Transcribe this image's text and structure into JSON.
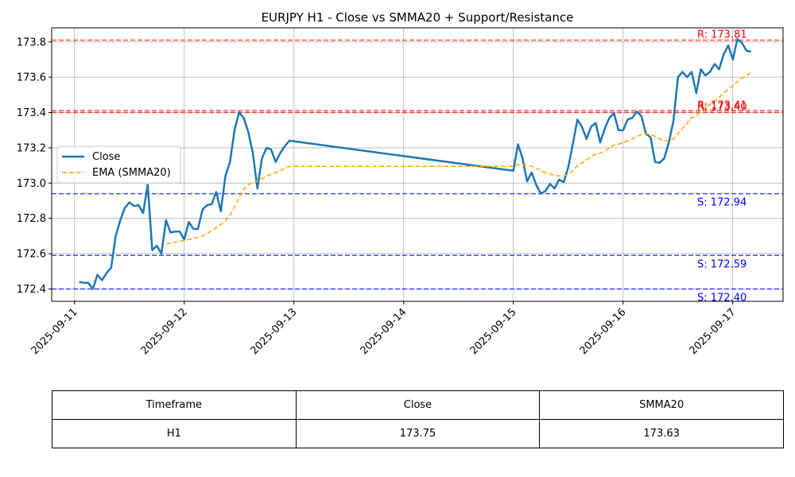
{
  "chart_data": {
    "type": "line",
    "title": "EURJPY H1 - Close vs SMMA20 + Support/Resistance",
    "xlabel": "",
    "ylabel": "",
    "x_ticks": [
      "2025-09-11",
      "2025-09-12",
      "2025-09-13",
      "2025-09-14",
      "2025-09-15",
      "2025-09-16",
      "2025-09-17"
    ],
    "y_ticks": [
      "172.4",
      "172.6",
      "172.8",
      "173.0",
      "173.2",
      "173.4",
      "173.6",
      "173.8"
    ],
    "xlim": [
      "2025-09-10T19:00",
      "2025-09-17T11:00"
    ],
    "ylim": [
      172.33,
      173.88
    ],
    "grid": true,
    "legend": {
      "position": "center-left",
      "entries": [
        "Close",
        "EMA (SMMA20)"
      ]
    },
    "series": [
      {
        "name": "Close",
        "color": "#1f77b4",
        "style": "solid",
        "points": [
          [
            "2025-09-11T01:00",
            172.44
          ],
          [
            "2025-09-11T02:00",
            172.435
          ],
          [
            "2025-09-11T03:00",
            172.435
          ],
          [
            "2025-09-11T04:00",
            172.4
          ],
          [
            "2025-09-11T05:00",
            172.48
          ],
          [
            "2025-09-11T06:00",
            172.45
          ],
          [
            "2025-09-11T07:00",
            172.49
          ],
          [
            "2025-09-11T08:00",
            172.52
          ],
          [
            "2025-09-11T09:00",
            172.7
          ],
          [
            "2025-09-11T10:00",
            172.79
          ],
          [
            "2025-09-11T11:00",
            172.86
          ],
          [
            "2025-09-11T12:00",
            172.89
          ],
          [
            "2025-09-11T13:00",
            172.87
          ],
          [
            "2025-09-11T14:00",
            172.875
          ],
          [
            "2025-09-11T15:00",
            172.83
          ],
          [
            "2025-09-11T16:00",
            172.99
          ],
          [
            "2025-09-11T17:00",
            172.62
          ],
          [
            "2025-09-11T18:00",
            172.645
          ],
          [
            "2025-09-11T19:00",
            172.6
          ],
          [
            "2025-09-11T20:00",
            172.79
          ],
          [
            "2025-09-11T21:00",
            172.72
          ],
          [
            "2025-09-11T22:00",
            172.725
          ],
          [
            "2025-09-11T23:00",
            172.725
          ],
          [
            "2025-09-12T00:00",
            172.68
          ],
          [
            "2025-09-12T01:00",
            172.78
          ],
          [
            "2025-09-12T02:00",
            172.74
          ],
          [
            "2025-09-12T03:00",
            172.74
          ],
          [
            "2025-09-12T04:00",
            172.85
          ],
          [
            "2025-09-12T05:00",
            172.875
          ],
          [
            "2025-09-12T06:00",
            172.88
          ],
          [
            "2025-09-12T07:00",
            172.95
          ],
          [
            "2025-09-12T08:00",
            172.84
          ],
          [
            "2025-09-12T09:00",
            173.04
          ],
          [
            "2025-09-12T10:00",
            173.12
          ],
          [
            "2025-09-12T11:00",
            173.3
          ],
          [
            "2025-09-12T12:00",
            173.4
          ],
          [
            "2025-09-12T13:00",
            173.37
          ],
          [
            "2025-09-12T14:00",
            173.29
          ],
          [
            "2025-09-12T15:00",
            173.17
          ],
          [
            "2025-09-12T16:00",
            172.97
          ],
          [
            "2025-09-12T17:00",
            173.14
          ],
          [
            "2025-09-12T18:00",
            173.2
          ],
          [
            "2025-09-12T19:00",
            173.19
          ],
          [
            "2025-09-12T20:00",
            173.12
          ],
          [
            "2025-09-12T21:00",
            173.17
          ],
          [
            "2025-09-12T22:00",
            173.21
          ],
          [
            "2025-09-12T23:00",
            173.24
          ],
          [
            "2025-09-15T00:00",
            173.07
          ],
          [
            "2025-09-15T01:00",
            173.22
          ],
          [
            "2025-09-15T02:00",
            173.14
          ],
          [
            "2025-09-15T03:00",
            173.01
          ],
          [
            "2025-09-15T04:00",
            173.06
          ],
          [
            "2025-09-15T05:00",
            172.99
          ],
          [
            "2025-09-15T06:00",
            172.94
          ],
          [
            "2025-09-15T07:00",
            172.955
          ],
          [
            "2025-09-15T08:00",
            172.995
          ],
          [
            "2025-09-15T09:00",
            172.97
          ],
          [
            "2025-09-15T10:00",
            173.02
          ],
          [
            "2025-09-15T11:00",
            173.005
          ],
          [
            "2025-09-15T12:00",
            173.09
          ],
          [
            "2025-09-15T13:00",
            173.22
          ],
          [
            "2025-09-15T14:00",
            173.36
          ],
          [
            "2025-09-15T15:00",
            173.32
          ],
          [
            "2025-09-15T16:00",
            173.25
          ],
          [
            "2025-09-15T17:00",
            173.32
          ],
          [
            "2025-09-15T18:00",
            173.34
          ],
          [
            "2025-09-15T19:00",
            173.23
          ],
          [
            "2025-09-15T20:00",
            173.31
          ],
          [
            "2025-09-15T21:00",
            173.37
          ],
          [
            "2025-09-15T22:00",
            173.395
          ],
          [
            "2025-09-15T23:00",
            173.3
          ],
          [
            "2025-09-16T00:00",
            173.3
          ],
          [
            "2025-09-16T01:00",
            173.36
          ],
          [
            "2025-09-16T02:00",
            173.37
          ],
          [
            "2025-09-16T03:00",
            173.405
          ],
          [
            "2025-09-16T04:00",
            173.38
          ],
          [
            "2025-09-16T05:00",
            173.28
          ],
          [
            "2025-09-16T06:00",
            173.26
          ],
          [
            "2025-09-16T07:00",
            173.12
          ],
          [
            "2025-09-16T08:00",
            173.115
          ],
          [
            "2025-09-16T09:00",
            173.14
          ],
          [
            "2025-09-16T10:00",
            173.23
          ],
          [
            "2025-09-16T11:00",
            173.35
          ],
          [
            "2025-09-16T12:00",
            173.6
          ],
          [
            "2025-09-16T13:00",
            173.63
          ],
          [
            "2025-09-16T14:00",
            173.6
          ],
          [
            "2025-09-16T15:00",
            173.63
          ],
          [
            "2025-09-16T16:00",
            173.51
          ],
          [
            "2025-09-16T17:00",
            173.645
          ],
          [
            "2025-09-16T18:00",
            173.61
          ],
          [
            "2025-09-16T19:00",
            173.63
          ],
          [
            "2025-09-16T20:00",
            173.675
          ],
          [
            "2025-09-16T21:00",
            173.645
          ],
          [
            "2025-09-16T22:00",
            173.73
          ],
          [
            "2025-09-16T23:00",
            173.78
          ],
          [
            "2025-09-17T00:00",
            173.7
          ],
          [
            "2025-09-17T01:00",
            173.815
          ],
          [
            "2025-09-17T02:00",
            173.795
          ],
          [
            "2025-09-17T03:00",
            173.75
          ],
          [
            "2025-09-17T04:00",
            173.745
          ]
        ]
      },
      {
        "name": "EMA (SMMA20)",
        "color": "#ffa500",
        "style": "dashed",
        "points": [
          [
            "2025-09-11T20:00",
            172.655
          ],
          [
            "2025-09-11T22:00",
            172.665
          ],
          [
            "2025-09-12T00:00",
            172.675
          ],
          [
            "2025-09-12T02:00",
            172.685
          ],
          [
            "2025-09-12T04:00",
            172.7
          ],
          [
            "2025-09-12T06:00",
            172.73
          ],
          [
            "2025-09-12T08:00",
            172.765
          ],
          [
            "2025-09-12T09:00",
            172.785
          ],
          [
            "2025-09-12T10:00",
            172.82
          ],
          [
            "2025-09-12T11:00",
            172.865
          ],
          [
            "2025-09-12T12:00",
            172.92
          ],
          [
            "2025-09-12T13:00",
            172.965
          ],
          [
            "2025-09-12T14:00",
            172.99
          ],
          [
            "2025-09-12T15:00",
            173.005
          ],
          [
            "2025-09-12T16:00",
            173.01
          ],
          [
            "2025-09-12T17:00",
            173.025
          ],
          [
            "2025-09-12T18:00",
            173.04
          ],
          [
            "2025-09-12T19:00",
            173.05
          ],
          [
            "2025-09-12T20:00",
            173.06
          ],
          [
            "2025-09-12T21:00",
            173.07
          ],
          [
            "2025-09-12T22:00",
            173.085
          ],
          [
            "2025-09-12T23:00",
            173.095
          ],
          [
            "2025-09-15T00:00",
            173.095
          ],
          [
            "2025-09-15T01:00",
            173.105
          ],
          [
            "2025-09-15T02:00",
            173.105
          ],
          [
            "2025-09-15T03:00",
            173.1
          ],
          [
            "2025-09-15T04:00",
            173.095
          ],
          [
            "2025-09-15T05:00",
            173.085
          ],
          [
            "2025-09-15T06:00",
            173.07
          ],
          [
            "2025-09-15T07:00",
            173.06
          ],
          [
            "2025-09-15T08:00",
            173.05
          ],
          [
            "2025-09-15T09:00",
            173.045
          ],
          [
            "2025-09-15T10:00",
            173.04
          ],
          [
            "2025-09-15T11:00",
            173.04
          ],
          [
            "2025-09-15T12:00",
            173.05
          ],
          [
            "2025-09-15T13:00",
            173.07
          ],
          [
            "2025-09-15T14:00",
            173.1
          ],
          [
            "2025-09-15T15:00",
            173.115
          ],
          [
            "2025-09-15T16:00",
            173.13
          ],
          [
            "2025-09-15T17:00",
            173.15
          ],
          [
            "2025-09-15T18:00",
            173.165
          ],
          [
            "2025-09-15T19:00",
            173.17
          ],
          [
            "2025-09-15T20:00",
            173.18
          ],
          [
            "2025-09-15T21:00",
            173.2
          ],
          [
            "2025-09-15T22:00",
            173.215
          ],
          [
            "2025-09-15T23:00",
            173.22
          ],
          [
            "2025-09-16T00:00",
            173.23
          ],
          [
            "2025-09-16T01:00",
            173.24
          ],
          [
            "2025-09-16T02:00",
            173.25
          ],
          [
            "2025-09-16T03:00",
            173.265
          ],
          [
            "2025-09-16T04:00",
            173.275
          ],
          [
            "2025-09-16T05:00",
            173.28
          ],
          [
            "2025-09-16T06:00",
            173.275
          ],
          [
            "2025-09-16T07:00",
            173.265
          ],
          [
            "2025-09-16T08:00",
            173.25
          ],
          [
            "2025-09-16T09:00",
            173.24
          ],
          [
            "2025-09-16T10:00",
            173.24
          ],
          [
            "2025-09-16T11:00",
            173.25
          ],
          [
            "2025-09-16T12:00",
            173.28
          ],
          [
            "2025-09-16T13:00",
            173.31
          ],
          [
            "2025-09-16T14:00",
            173.34
          ],
          [
            "2025-09-16T15:00",
            173.37
          ],
          [
            "2025-09-16T16:00",
            173.38
          ],
          [
            "2025-09-16T17:00",
            173.405
          ],
          [
            "2025-09-16T18:00",
            173.425
          ],
          [
            "2025-09-16T19:00",
            173.445
          ],
          [
            "2025-09-16T20:00",
            173.465
          ],
          [
            "2025-09-16T21:00",
            173.485
          ],
          [
            "2025-09-16T22:00",
            173.51
          ],
          [
            "2025-09-16T23:00",
            173.535
          ],
          [
            "2025-09-17T00:00",
            173.55
          ],
          [
            "2025-09-17T01:00",
            173.575
          ],
          [
            "2025-09-17T02:00",
            173.595
          ],
          [
            "2025-09-17T03:00",
            173.61
          ],
          [
            "2025-09-17T04:00",
            173.625
          ]
        ]
      }
    ],
    "levels": [
      {
        "kind": "resistance",
        "value": 173.81,
        "label": "R: 173.81",
        "color": "#ff0000"
      },
      {
        "kind": "resistance",
        "value": 173.4,
        "label": "R: 173.40",
        "color": "#ff0000"
      },
      {
        "kind": "resistance",
        "value": 173.41,
        "label": "R: 173.41",
        "color": "#ff0000"
      },
      {
        "kind": "support",
        "value": 172.94,
        "label": "S: 172.94",
        "color": "#0000ff"
      },
      {
        "kind": "support",
        "value": 172.59,
        "label": "S: 172.59",
        "color": "#0000ff"
      },
      {
        "kind": "support",
        "value": 172.4,
        "label": "S: 172.40",
        "color": "#0000ff"
      }
    ]
  },
  "table": {
    "headers": [
      "Timeframe",
      "Close",
      "SMMA20"
    ],
    "rows": [
      [
        "H1",
        "173.75",
        "173.63"
      ]
    ]
  }
}
